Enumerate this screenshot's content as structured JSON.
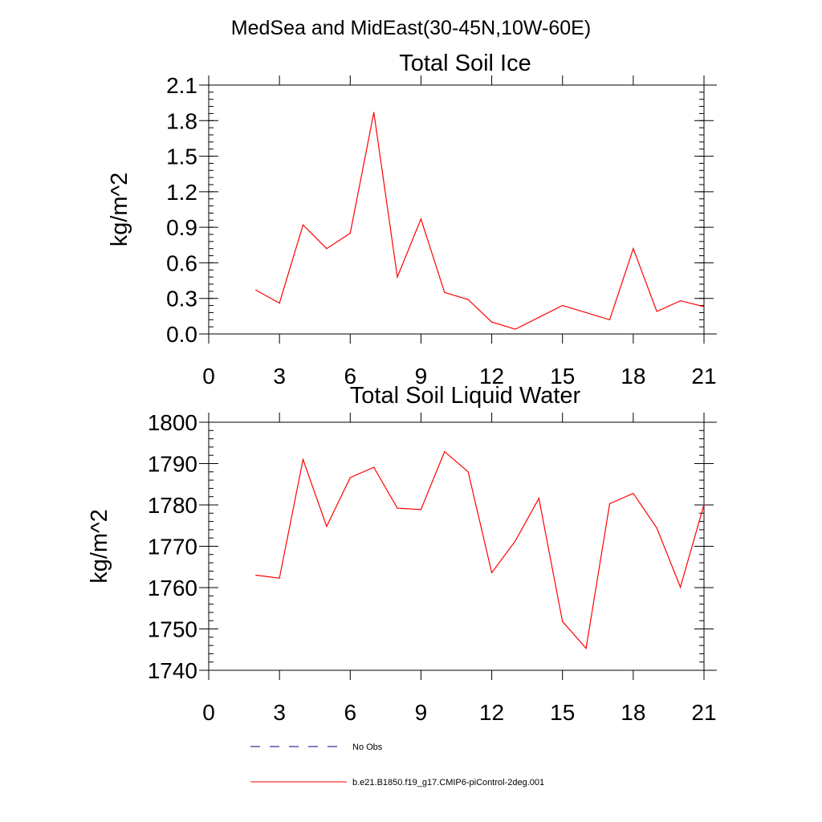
{
  "main_title": "MedSea and MidEast(30-45N,10W-60E)",
  "colors": {
    "series": "#ff0000",
    "axes": "#000000",
    "noobs": "#000080"
  },
  "chart_data": [
    {
      "type": "line",
      "title": "Total Soil Ice",
      "xlabel": "",
      "ylabel": "kg/m^2",
      "xlim": [
        0,
        21
      ],
      "ylim": [
        0,
        2.1
      ],
      "xticks": [
        0,
        3,
        6,
        9,
        12,
        15,
        18,
        21
      ],
      "xtick_labels": [
        "0",
        "3",
        "6",
        "9",
        "12",
        "15",
        "18",
        "21"
      ],
      "yticks": [
        0,
        0.3,
        0.6,
        0.9,
        1.2,
        1.5,
        1.8,
        2.1
      ],
      "ytick_labels": [
        "0.0",
        "0.3",
        "0.6",
        "0.9",
        "1.2",
        "1.5",
        "1.8",
        "2.1"
      ],
      "yminor": 0.06,
      "series": [
        {
          "name": "b.e21.B1850.f19_g17.CMIP6-piControl-2deg.001",
          "x": [
            2,
            3,
            4,
            5,
            6,
            7,
            8,
            9,
            10,
            11,
            12,
            13,
            14,
            15,
            16,
            17,
            18,
            19,
            20,
            21
          ],
          "values": [
            0.37,
            0.26,
            0.92,
            0.72,
            0.85,
            1.87,
            0.48,
            0.97,
            0.35,
            0.29,
            0.1,
            0.04,
            0.14,
            0.24,
            0.18,
            0.12,
            0.72,
            0.19,
            0.28,
            0.23
          ]
        }
      ]
    },
    {
      "type": "line",
      "title": "Total Soil Liquid Water",
      "xlabel": "",
      "ylabel": "kg/m^2",
      "xlim": [
        0,
        21
      ],
      "ylim": [
        1740,
        1800
      ],
      "xticks": [
        0,
        3,
        6,
        9,
        12,
        15,
        18,
        21
      ],
      "xtick_labels": [
        "0",
        "3",
        "6",
        "9",
        "12",
        "15",
        "18",
        "21"
      ],
      "yticks": [
        1740,
        1750,
        1760,
        1770,
        1780,
        1790,
        1800
      ],
      "ytick_labels": [
        "1740",
        "1750",
        "1760",
        "1770",
        "1780",
        "1790",
        "1800"
      ],
      "yminor": 2,
      "series": [
        {
          "name": "b.e21.B1850.f19_g17.CMIP6-piControl-2deg.001",
          "x": [
            2,
            3,
            4,
            5,
            6,
            7,
            8,
            9,
            10,
            11,
            12,
            13,
            14,
            15,
            16,
            17,
            18,
            19,
            20,
            21
          ],
          "values": [
            1763.0,
            1762.3,
            1791.0,
            1774.8,
            1786.6,
            1789.1,
            1779.2,
            1778.9,
            1792.9,
            1788.0,
            1763.6,
            1771.3,
            1781.6,
            1751.8,
            1745.3,
            1780.3,
            1782.8,
            1774.4,
            1760.1,
            1780.1
          ]
        }
      ]
    }
  ],
  "legend": [
    {
      "label": "No Obs",
      "style": "dashed"
    },
    {
      "label": "b.e21.B1850.f19_g17.CMIP6-piControl-2deg.001",
      "style": "solid"
    }
  ]
}
